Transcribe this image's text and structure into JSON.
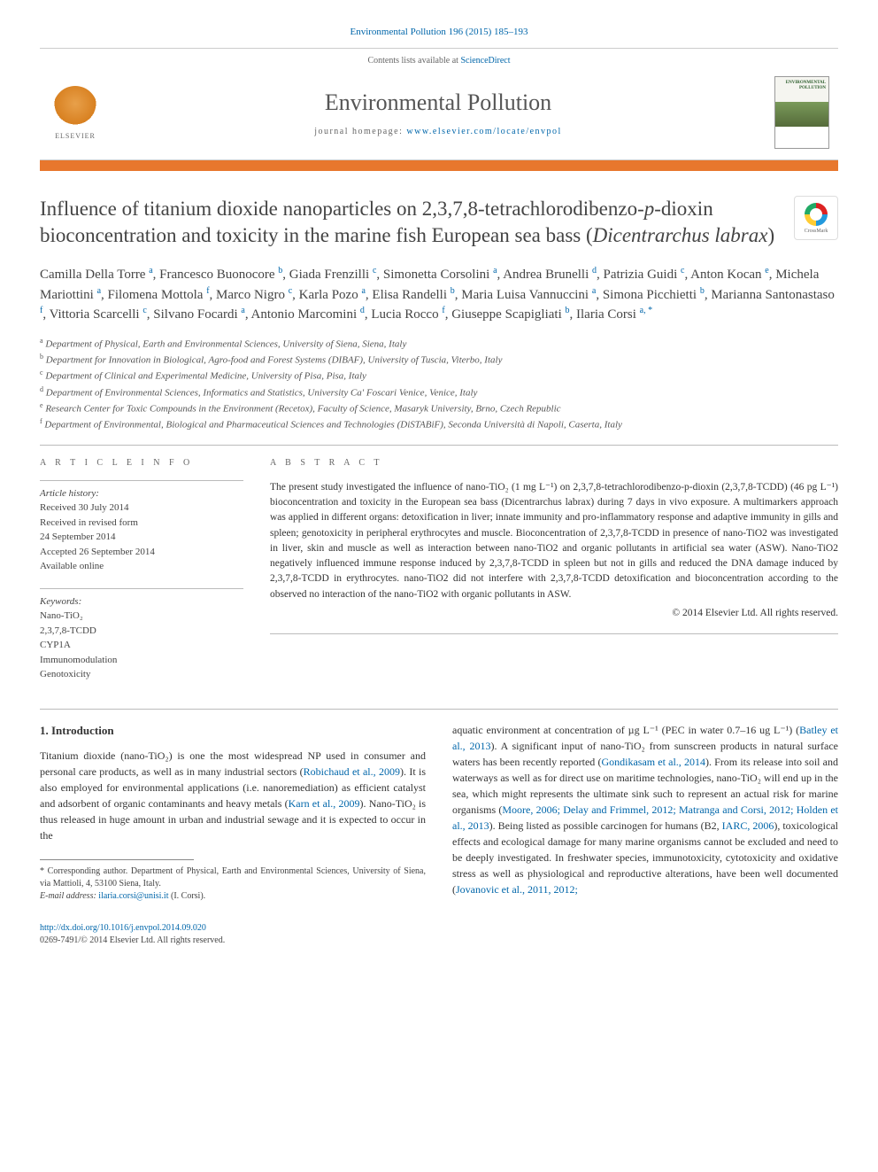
{
  "citation": "Environmental Pollution 196 (2015) 185–193",
  "header": {
    "contents_prefix": "Contents lists available at ",
    "contents_link": "ScienceDirect",
    "journal_title": "Environmental Pollution",
    "homepage_prefix": "journal homepage: ",
    "homepage_url": "www.elsevier.com/locate/envpol",
    "elsevier_label": "ELSEVIER",
    "cover_text": "ENVIRONMENTAL\nPOLLUTION"
  },
  "crossmark_label": "CrossMark",
  "title_html": "Influence of titanium dioxide nanoparticles on 2,3,7,8-tetrachlorodibenzo-<em>p</em>-dioxin bioconcentration and toxicity in the marine fish European sea bass (<em>Dicentrarchus labrax</em>)",
  "authors_html": "Camilla Della Torre <span class='sup'>a</span>, Francesco Buonocore <span class='sup'>b</span>, Giada Frenzilli <span class='sup'>c</span>, Simonetta Corsolini <span class='sup'>a</span>, Andrea Brunelli <span class='sup'>d</span>, Patrizia Guidi <span class='sup'>c</span>, Anton Kocan <span class='sup'>e</span>, Michela Mariottini <span class='sup'>a</span>, Filomena Mottola <span class='sup'>f</span>, Marco Nigro <span class='sup'>c</span>, Karla Pozo <span class='sup'>a</span>, Elisa Randelli <span class='sup'>b</span>, Maria Luisa Vannuccini <span class='sup'>a</span>, Simona Picchietti <span class='sup'>b</span>, Marianna Santonastaso <span class='sup'>f</span>, Vittoria Scarcelli <span class='sup'>c</span>, Silvano Focardi <span class='sup'>a</span>, Antonio Marcomini <span class='sup'>d</span>, Lucia Rocco <span class='sup'>f</span>, Giuseppe Scapigliati <span class='sup'>b</span>, Ilaria Corsi <span class='sup'>a, *</span>",
  "affiliations": [
    {
      "sup": "a",
      "text": "Department of Physical, Earth and Environmental Sciences, University of Siena, Siena, Italy"
    },
    {
      "sup": "b",
      "text": "Department for Innovation in Biological, Agro-food and Forest Systems (DIBAF), University of Tuscia, Viterbo, Italy"
    },
    {
      "sup": "c",
      "text": "Department of Clinical and Experimental Medicine, University of Pisa, Pisa, Italy"
    },
    {
      "sup": "d",
      "text": "Department of Environmental Sciences, Informatics and Statistics, University Ca' Foscari Venice, Venice, Italy"
    },
    {
      "sup": "e",
      "text": "Research Center for Toxic Compounds in the Environment (Recetox), Faculty of Science, Masaryk University, Brno, Czech Republic"
    },
    {
      "sup": "f",
      "text": "Department of Environmental, Biological and Pharmaceutical Sciences and Technologies (DiSTABiF), Seconda Università di Napoli, Caserta, Italy"
    }
  ],
  "info": {
    "label": "A R T I C L E   I N F O",
    "history_head": "Article history:",
    "history_lines": [
      "Received 30 July 2014",
      "Received in revised form",
      "24 September 2014",
      "Accepted 26 September 2014",
      "Available online"
    ],
    "keywords_head": "Keywords:",
    "keywords": [
      "Nano-TiO₂",
      "2,3,7,8-TCDD",
      "CYP1A",
      "Immunomodulation",
      "Genotoxicity"
    ]
  },
  "abstract": {
    "label": "A B S T R A C T",
    "text": "The present study investigated the influence of nano-TiO₂ (1 mg L⁻¹) on 2,3,7,8-tetrachlorodibenzo-p-dioxin (2,3,7,8-TCDD) (46 pg L⁻¹) bioconcentration and toxicity in the European sea bass (Dicentrarchus labrax) during 7 days in vivo exposure. A multimarkers approach was applied in different organs: detoxification in liver; innate immunity and pro-inflammatory response and adaptive immunity in gills and spleen; genotoxicity in peripheral erythrocytes and muscle. Bioconcentration of 2,3,7,8-TCDD in presence of nano-TiO2 was investigated in liver, skin and muscle as well as interaction between nano-TiO2 and organic pollutants in artificial sea water (ASW). Nano-TiO2 negatively influenced immune response induced by 2,3,7,8-TCDD in spleen but not in gills and reduced the DNA damage induced by 2,3,7,8-TCDD in erythrocytes. nano-TiO2 did not interfere with 2,3,7,8-TCDD detoxification and bioconcentration according to the observed no interaction of the nano-TiO2 with organic pollutants in ASW.",
    "copyright": "© 2014 Elsevier Ltd. All rights reserved."
  },
  "body": {
    "heading": "1. Introduction",
    "para1_html": "Titanium dioxide (nano-TiO₂) is one the most widespread NP used in consumer and personal care products, as well as in many industrial sectors (<span class='ref-link'>Robichaud et al., 2009</span>). It is also employed for environmental applications (i.e. nanoremediation) as efficient catalyst and adsorbent of organic contaminants and heavy metals (<span class='ref-link'>Karn et al., 2009</span>). Nano-TiO₂ is thus released in huge amount in urban and industrial sewage and it is expected to occur in the",
    "para2_html": "aquatic environment at concentration of µg L⁻¹ (PEC in water 0.7–16 ug L⁻¹) (<span class='ref-link'>Batley et al., 2013</span>). A significant input of nano-TiO₂ from sunscreen products in natural surface waters has been recently reported (<span class='ref-link'>Gondikasam et al., 2014</span>). From its release into soil and waterways as well as for direct use on maritime technologies, nano-TiO₂ will end up in the sea, which might represents the ultimate sink such to represent an actual risk for marine organisms (<span class='ref-link'>Moore, 2006; Delay and Frimmel, 2012; Matranga and Corsi, 2012; Holden et al., 2013</span>). Being listed as possible carcinogen for humans (B2, <span class='ref-link'>IARC, 2006</span>), toxicological effects and ecological damage for many marine organisms cannot be excluded and need to be deeply investigated. In freshwater species, immunotoxicity, cytotoxicity and oxidative stress as well as physiological and reproductive alterations, have been well documented (<span class='ref-link'>Jovanovic et al., 2011, 2012;</span>"
  },
  "footnote": {
    "corr": "* Corresponding author. Department of Physical, Earth and Environmental Sciences, University of Siena, via Mattioli, 4, 53100 Siena, Italy.",
    "email_label": "E-mail address:",
    "email": "ilaria.corsi@unisi.it",
    "email_suffix": "(I. Corsi)."
  },
  "footer": {
    "doi": "http://dx.doi.org/10.1016/j.envpol.2014.09.020",
    "line2": "0269-7491/© 2014 Elsevier Ltd. All rights reserved."
  },
  "colors": {
    "accent_orange": "#e8772d",
    "link_blue": "#0066aa",
    "text_gray": "#444444"
  }
}
